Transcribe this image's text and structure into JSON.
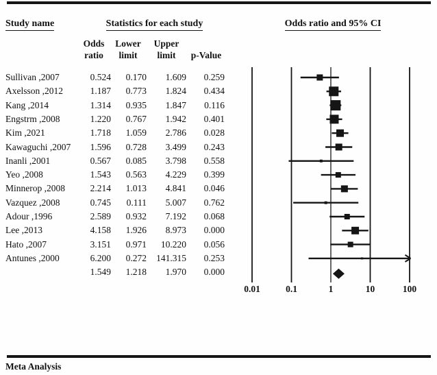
{
  "header": {
    "study_col_title": "Study name",
    "stats_title": "Statistics for each study",
    "plot_title": "Odds ratio and 95% CI",
    "columns": {
      "odds": "Odds\nratio",
      "lower": "Lower\nlimit",
      "upper": "Upper\nlimit",
      "p": "p-Value"
    }
  },
  "footer": {
    "label": "Meta Analysis"
  },
  "chart_data": {
    "type": "forest",
    "title": "Odds ratio and 95% CI",
    "x_scale": "log10",
    "x_ticks": [
      "0.01",
      "0.1",
      "1",
      "10",
      "100"
    ],
    "x_range": [
      0.01,
      100
    ],
    "grid": "vertical-reference-lines",
    "columns": [
      "Study name",
      "Odds ratio",
      "Lower limit",
      "Upper limit",
      "p-Value"
    ],
    "studies": [
      {
        "name": "Sullivan ,2007",
        "or": "0.524",
        "lower": "0.170",
        "upper": "1.609",
        "p": "0.259",
        "marker_size": 9
      },
      {
        "name": "Axelsson ,2012",
        "or": "1.187",
        "lower": "0.773",
        "upper": "1.824",
        "p": "0.434",
        "marker_size": 14
      },
      {
        "name": "Kang ,2014",
        "or": "1.314",
        "lower": "0.935",
        "upper": "1.847",
        "p": "0.116",
        "marker_size": 15
      },
      {
        "name": "Engstrm ,2008",
        "or": "1.220",
        "lower": "0.767",
        "upper": "1.942",
        "p": "0.401",
        "marker_size": 13
      },
      {
        "name": "Kim ,2021",
        "or": "1.718",
        "lower": "1.059",
        "upper": "2.786",
        "p": "0.028",
        "marker_size": 11
      },
      {
        "name": "Kawaguchi ,2007",
        "or": "1.596",
        "lower": "0.728",
        "upper": "3.499",
        "p": "0.243",
        "marker_size": 10
      },
      {
        "name": "Inanli ,2001",
        "or": "0.567",
        "lower": "0.085",
        "upper": "3.798",
        "p": "0.558",
        "marker_size": 4
      },
      {
        "name": "Yeo ,2008",
        "or": "1.543",
        "lower": "0.563",
        "upper": "4.229",
        "p": "0.399",
        "marker_size": 8
      },
      {
        "name": "Minnerop ,2008",
        "or": "2.214",
        "lower": "1.013",
        "upper": "4.841",
        "p": "0.046",
        "marker_size": 10
      },
      {
        "name": "Vazquez ,2008",
        "or": "0.745",
        "lower": "0.111",
        "upper": "5.007",
        "p": "0.762",
        "marker_size": 4
      },
      {
        "name": "Adour ,1996",
        "or": "2.589",
        "lower": "0.932",
        "upper": "7.192",
        "p": "0.068",
        "marker_size": 8
      },
      {
        "name": "Lee ,2013",
        "or": "4.158",
        "lower": "1.926",
        "upper": "8.973",
        "p": "0.000",
        "marker_size": 11
      },
      {
        "name": "Hato ,2007",
        "or": "3.151",
        "lower": "0.971",
        "upper": "10.220",
        "p": "0.056",
        "marker_size": 8
      },
      {
        "name": "Antunes ,2000",
        "or": "6.200",
        "lower": "0.272",
        "upper": "141.315",
        "p": "0.253",
        "marker_size": 3
      }
    ],
    "overall": {
      "name": "",
      "or": "1.549",
      "lower": "1.218",
      "upper": "1.970",
      "p": "0.000",
      "marker": "diamond"
    }
  }
}
